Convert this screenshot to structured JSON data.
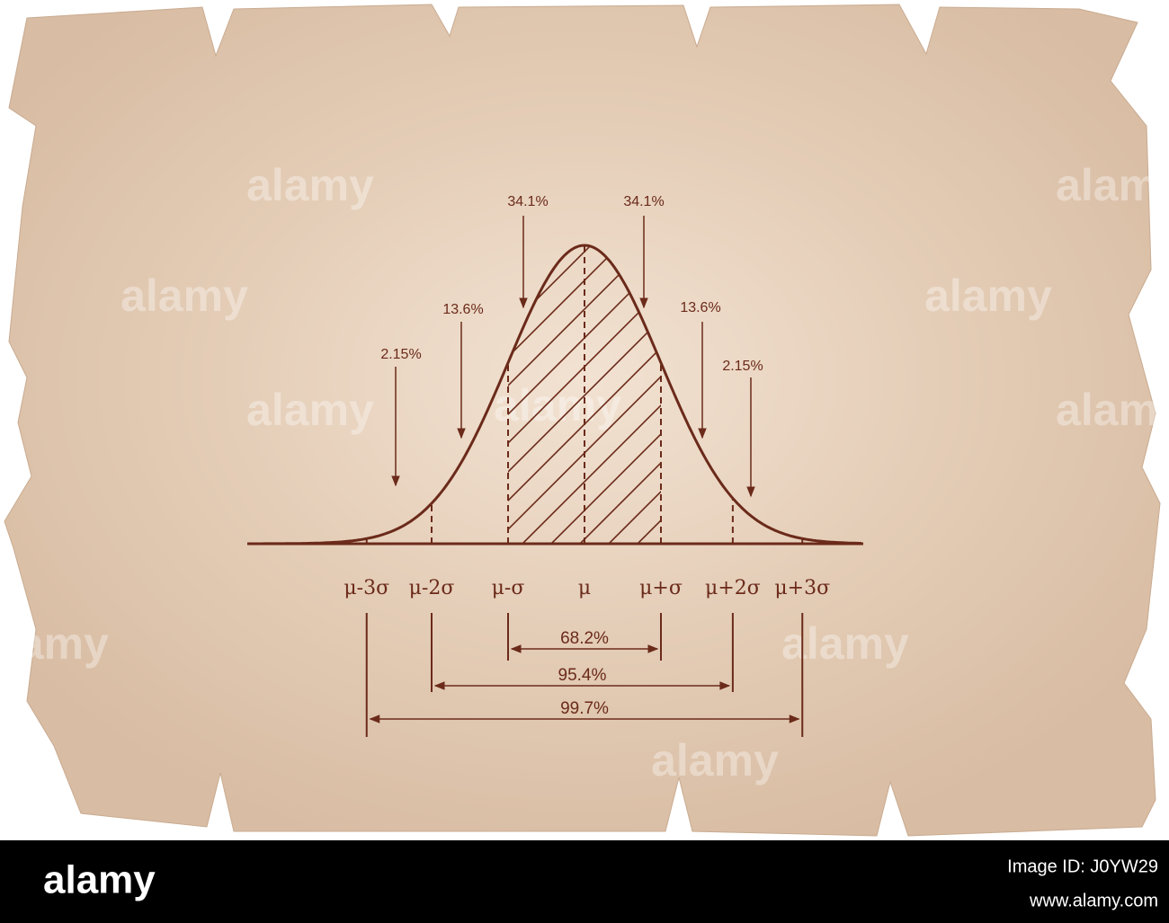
{
  "sigma_labels": [
    "μ-3σ",
    "μ-2σ",
    "μ-σ",
    "μ",
    "μ+σ",
    "μ+2σ",
    "μ+3σ"
  ],
  "area_labels": [
    "2.15%",
    "13.6%",
    "34.1%",
    "34.1%",
    "13.6%",
    "2.15%"
  ],
  "range_labels": [
    "68.2%",
    "95.4%",
    "99.7%"
  ],
  "watermark": "alamy",
  "footer": {
    "brand": "alamy",
    "image_id": "Image ID: J0YW29",
    "url": "www.alamy.com"
  }
}
